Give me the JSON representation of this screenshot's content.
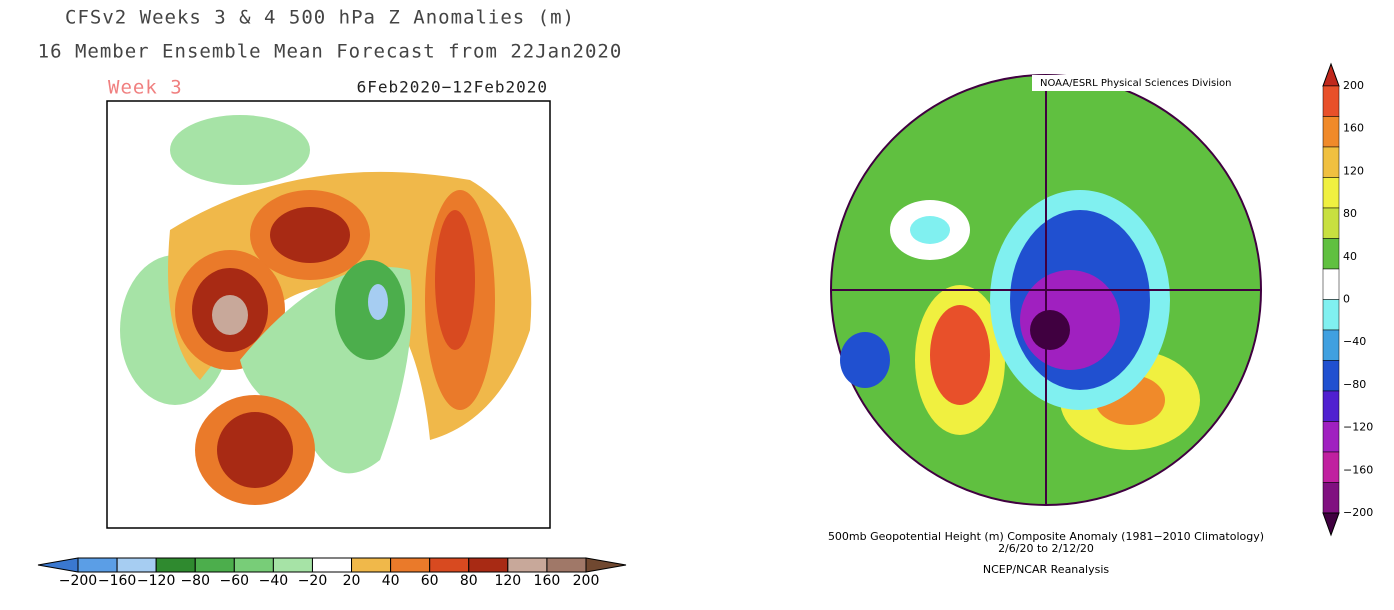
{
  "left_map": {
    "title_lines": [
      "CFSv2 Weeks 3 & 4 500 hPa Z Anomalies (m)",
      "16 Member Ensemble Mean Forecast from 22Jan2020"
    ],
    "panel_label": "Week 3",
    "date_range": "6Feb2020−12Feb2020",
    "colorbar": {
      "labels": [
        "−200",
        "−160",
        "−120",
        "−80",
        "−60",
        "−40",
        "−20",
        "20",
        "40",
        "60",
        "80",
        "120",
        "160",
        "200"
      ],
      "colors": [
        "#3a78d0",
        "#5b9ee6",
        "#a6cdf2",
        "#2f8a2f",
        "#4cae4c",
        "#78cd78",
        "#a6e3a6",
        "#ffffff",
        "#f0b84a",
        "#ea7a2a",
        "#d84a20",
        "#a82a14",
        "#c8a89a",
        "#a07868",
        "#704830"
      ]
    }
  },
  "right_map": {
    "credit": "NOAA/ESRL Physical Sciences Division",
    "caption_lines": [
      "500mb Geopotential Height (m) Composite Anomaly (1981−2010 Climatology)",
      "2/6/20  to 2/12/20",
      "NCEP/NCAR Reanalysis"
    ],
    "colorbar": {
      "labels": [
        "200",
        "160",
        "120",
        "80",
        "40",
        "0",
        "−40",
        "−80",
        "−120",
        "−160",
        "−200"
      ],
      "colors": [
        "#c0281c",
        "#e8502a",
        "#f08a2a",
        "#f0c040",
        "#f0f040",
        "#c8e040",
        "#60c040",
        "#ffffff",
        "#80f0f0",
        "#40a0e0",
        "#2050d0",
        "#5020d0",
        "#a020c0",
        "#c020a0",
        "#801080",
        "#400040"
      ]
    }
  }
}
